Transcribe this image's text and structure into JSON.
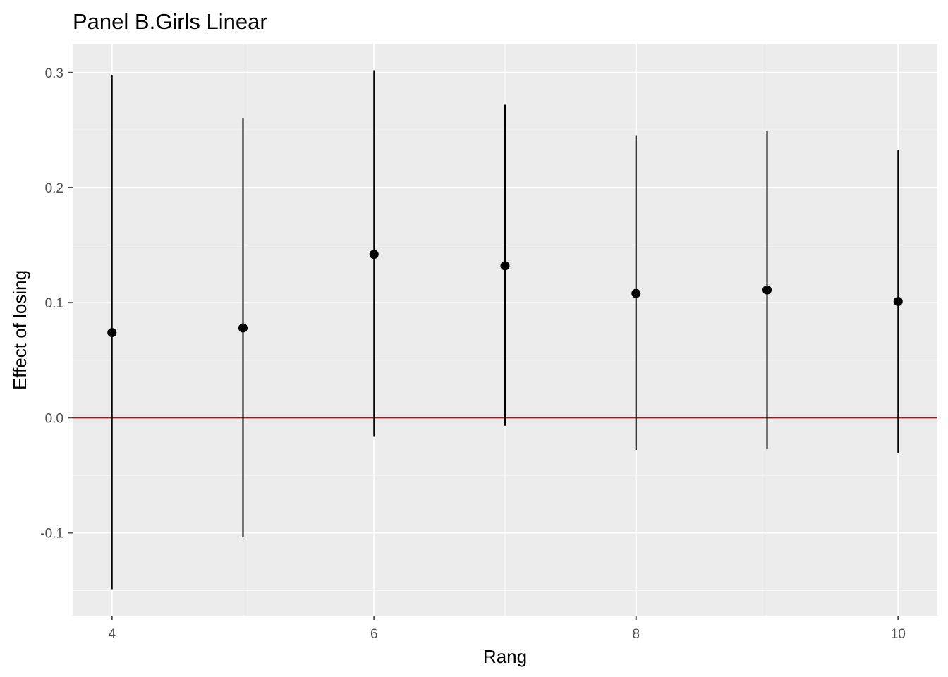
{
  "chart_data": {
    "type": "scatter",
    "subtype": "point-with-errorbars",
    "title": "Panel B.Girls Linear",
    "xlabel": "Rang",
    "ylabel": "Effect of losing",
    "x": [
      4,
      5,
      6,
      7,
      8,
      9,
      10
    ],
    "estimate": [
      0.074,
      0.078,
      0.142,
      0.132,
      0.108,
      0.111,
      0.101
    ],
    "ci_low": [
      -0.149,
      -0.104,
      -0.016,
      -0.007,
      -0.028,
      -0.027,
      -0.031
    ],
    "ci_high": [
      0.298,
      0.26,
      0.302,
      0.272,
      0.245,
      0.249,
      0.233
    ],
    "xlim": [
      3.7,
      10.3
    ],
    "ylim": [
      -0.172,
      0.325
    ],
    "x_ticks": [
      4,
      6,
      8,
      10
    ],
    "x_tick_labels": [
      "4",
      "6",
      "8",
      "10"
    ],
    "y_ticks": [
      -0.1,
      0.0,
      0.1,
      0.2,
      0.3
    ],
    "y_tick_labels": [
      "-0.1",
      "0.0",
      "0.1",
      "0.2",
      "0.3"
    ],
    "reference_line": {
      "y": 0.0,
      "color": "#8b2323"
    },
    "grid": true,
    "colors": {
      "panel_background": "#ebebeb",
      "grid": "#ffffff",
      "points": "#000000",
      "ticks": "#4d4d4d"
    }
  }
}
